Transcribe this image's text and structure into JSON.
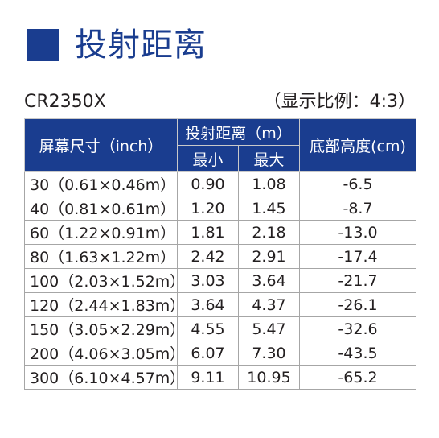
{
  "heading": {
    "title": "投射距离"
  },
  "subhead": {
    "model": "CR2350X",
    "ratio": "（显示比例：4:3）"
  },
  "colors": {
    "accent": "#1a3d8f",
    "header_text": "#ffffff",
    "grid": "#a6a6a6"
  },
  "table": {
    "header": {
      "screen_size": "屏幕尺寸（inch）",
      "throw_distance": "投射距离（m）",
      "min": "最小",
      "max": "最大",
      "bottom_height": "底部高度(cm)"
    },
    "rows": [
      {
        "size": "30（0.61×0.46m）",
        "min": "0.90",
        "max": "1.08",
        "height": "-6.5"
      },
      {
        "size": "40（0.81×0.61m）",
        "min": "1.20",
        "max": "1.45",
        "height": "-8.7"
      },
      {
        "size": "60（1.22×0.91m）",
        "min": "1.81",
        "max": "2.18",
        "height": "-13.0"
      },
      {
        "size": "80（1.63×1.22m）",
        "min": "2.42",
        "max": "2.91",
        "height": "-17.4"
      },
      {
        "size": "100（2.03×1.52m）",
        "min": "3.03",
        "max": "3.64",
        "height": "-21.7"
      },
      {
        "size": "120（2.44×1.83m）",
        "min": "3.64",
        "max": "4.37",
        "height": "-26.1"
      },
      {
        "size": "150（3.05×2.29m）",
        "min": "4.55",
        "max": "5.47",
        "height": "-32.6"
      },
      {
        "size": "200（4.06×3.05m）",
        "min": "6.07",
        "max": "7.30",
        "height": "-43.5"
      },
      {
        "size": "300（6.10×4.57m）",
        "min": "9.11",
        "max": "10.95",
        "height": "-65.2"
      }
    ]
  }
}
